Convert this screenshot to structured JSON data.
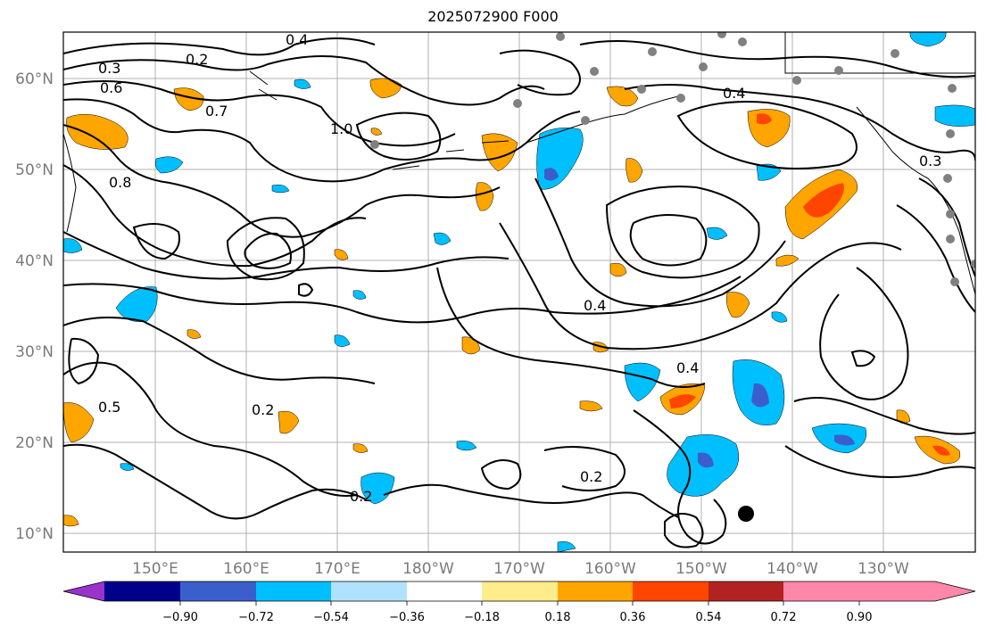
{
  "title": "2025072900 F000",
  "map": {
    "lat_labels": [
      "60°N",
      "50°N",
      "40°N",
      "30°N",
      "20°N",
      "10°N"
    ],
    "lon_labels": [
      "150°E",
      "160°E",
      "170°E",
      "180°W",
      "170°W",
      "160°W",
      "150°W",
      "140°W",
      "130°W"
    ],
    "contour_labels": [
      "0.4",
      "0.2",
      "0.3",
      "0.6",
      "0.7",
      "0.8",
      "1.0",
      "0.5",
      "0.4",
      "0.4",
      "0.2",
      "0.2",
      "0.3",
      "0.4",
      "0.2"
    ],
    "storm_marker_color": "#000000",
    "station_color": "#808080"
  },
  "colorbar": {
    "ticks": [
      "−0.90",
      "−0.72",
      "−0.54",
      "−0.36",
      "−0.18",
      "0.18",
      "0.36",
      "0.54",
      "0.72",
      "0.90"
    ],
    "colors": [
      "#9933cc",
      "#00008b",
      "#3a5fcd",
      "#00bfff",
      "#b0e2ff",
      "#ffffff",
      "#ffec8b",
      "#ffa500",
      "#ff4500",
      "#b22222",
      "#ff88aa",
      "#ff88aa"
    ]
  }
}
